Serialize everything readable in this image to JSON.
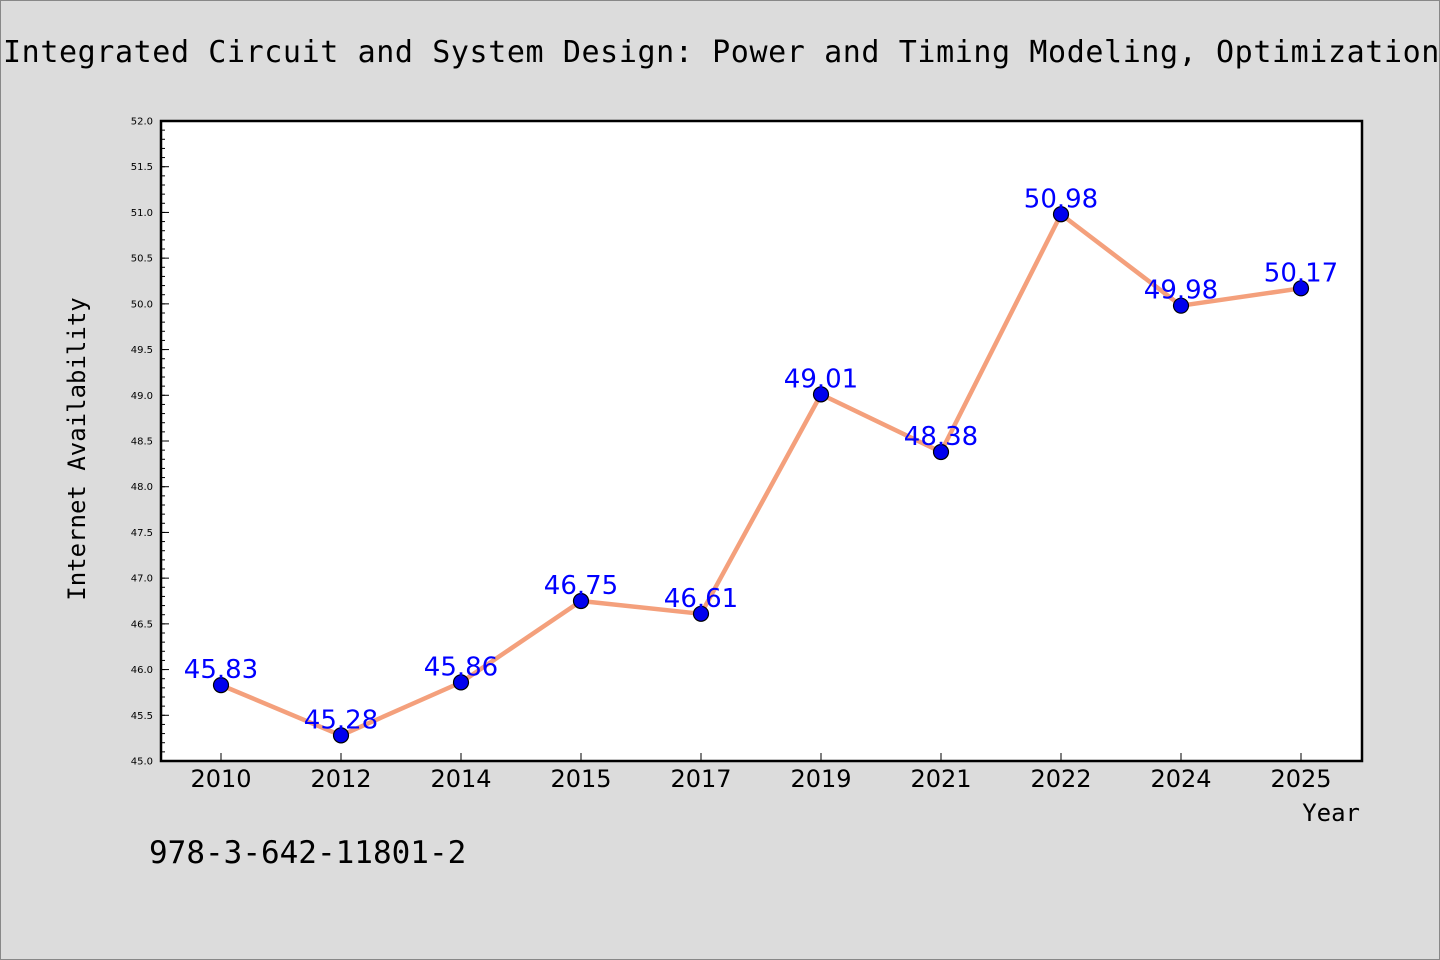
{
  "title": "Integrated Circuit and System Design: Power and Timing Modeling, Optimization and Simulation",
  "footer_text": "978-3-642-11801-2",
  "colors": {
    "background": "#dcdcdc",
    "plot_background": "#ffffff",
    "line": "#f4a07c",
    "marker": "#0000ee",
    "label": "#0000ff"
  },
  "chart_data": {
    "type": "line",
    "title": "Integrated Circuit and System Design: Power and Timing Modeling, Optimization and Simulation",
    "xlabel": "Year",
    "ylabel": "Internet Availability",
    "categories": [
      "2010",
      "2012",
      "2014",
      "2015",
      "2017",
      "2019",
      "2021",
      "2022",
      "2024",
      "2025"
    ],
    "values": [
      45.83,
      45.28,
      45.86,
      46.75,
      46.61,
      49.01,
      48.38,
      50.98,
      49.98,
      50.17
    ],
    "data_labels": [
      "45.83",
      "45.28",
      "45.86",
      "46.75",
      "46.61",
      "49.01",
      "48.38",
      "50.98",
      "49.98",
      "50.17"
    ],
    "ylim": [
      45.0,
      52.0
    ],
    "yticks": [
      "45.0",
      "45.5",
      "46.0",
      "46.5",
      "47.0",
      "47.5",
      "48.0",
      "48.5",
      "49.0",
      "49.5",
      "50.0",
      "50.5",
      "51.0",
      "51.5",
      "52.0"
    ],
    "grid": false,
    "legend": "none",
    "marker": "circle"
  }
}
